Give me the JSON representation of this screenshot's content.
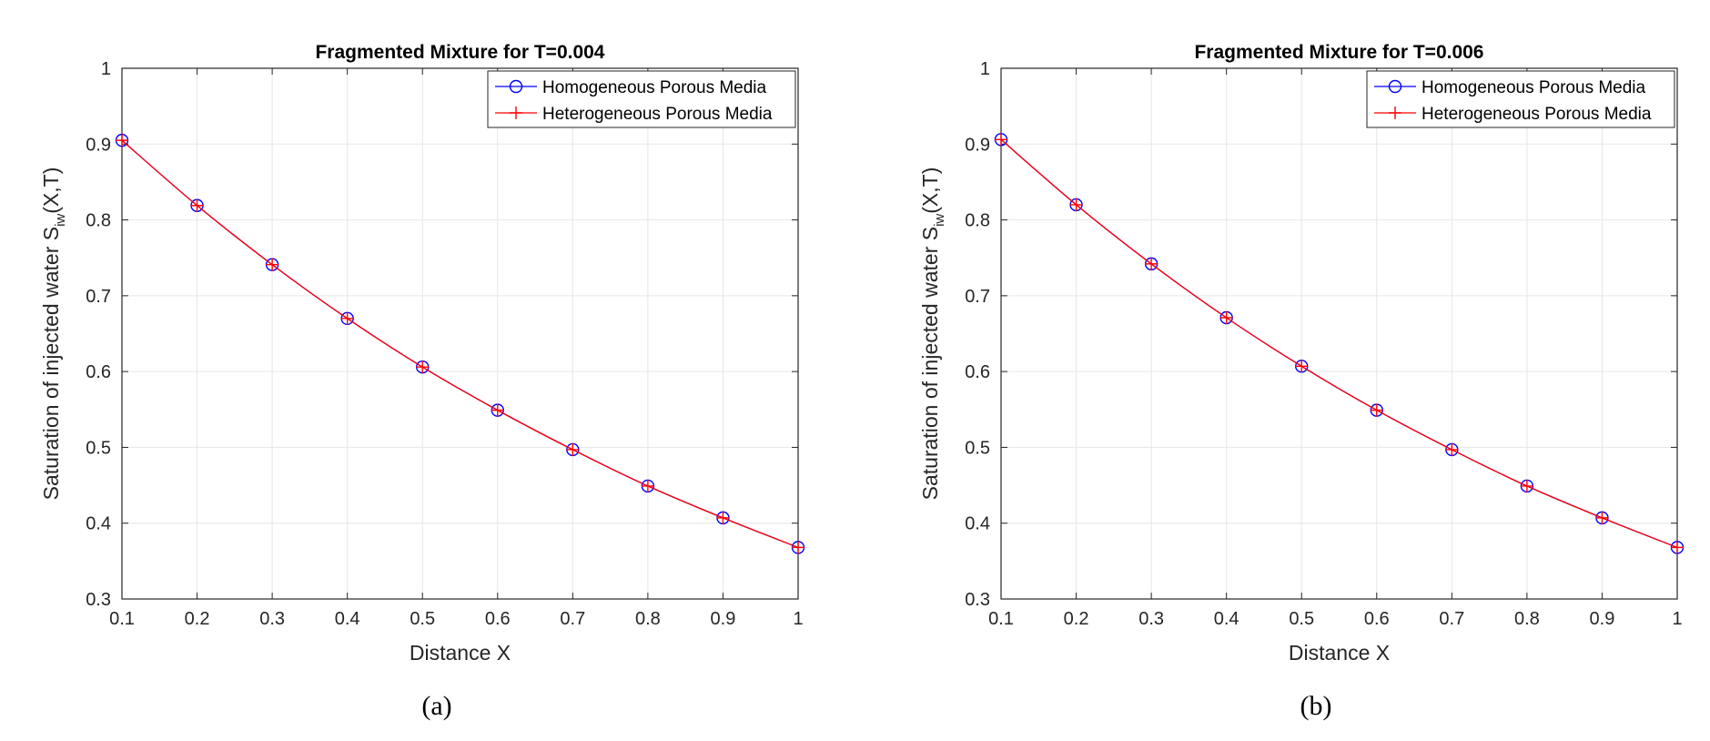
{
  "chart_data": [
    {
      "type": "line",
      "title": "Fragmented Mixture for T=0.004",
      "xlabel": "Distance X",
      "ylabel_main": "Saturation of injected water S",
      "ylabel_sub": "iw",
      "ylabel_tail": "(X,T)",
      "caption": "(a)",
      "xlim": [
        0.1,
        1
      ],
      "ylim": [
        0.3,
        1
      ],
      "xticks": [
        0.1,
        0.2,
        0.3,
        0.4,
        0.5,
        0.6,
        0.7,
        0.8,
        0.9,
        1
      ],
      "xtick_labels": [
        "0.1",
        "0.2",
        "0.3",
        "0.4",
        "0.5",
        "0.6",
        "0.7",
        "0.8",
        "0.9",
        "1"
      ],
      "yticks": [
        0.3,
        0.4,
        0.5,
        0.6,
        0.7,
        0.8,
        0.9,
        1
      ],
      "ytick_labels": [
        "0.3",
        "0.4",
        "0.5",
        "0.6",
        "0.7",
        "0.8",
        "0.9",
        "1"
      ],
      "grid": true,
      "legend_position": "top-right",
      "x": [
        0.1,
        0.2,
        0.3,
        0.4,
        0.5,
        0.6,
        0.7,
        0.8,
        0.9,
        1.0
      ],
      "series": [
        {
          "name": "Homogeneous Porous Media",
          "color": "#0000ff",
          "marker": "circle",
          "values": [
            0.905,
            0.819,
            0.741,
            0.67,
            0.606,
            0.549,
            0.497,
            0.449,
            0.407,
            0.368
          ]
        },
        {
          "name": "Heterogeneous Porous Media",
          "color": "#ff0000",
          "marker": "plus",
          "values": [
            0.905,
            0.819,
            0.741,
            0.67,
            0.606,
            0.549,
            0.497,
            0.449,
            0.407,
            0.368
          ]
        }
      ]
    },
    {
      "type": "line",
      "title": "Fragmented Mixture for T=0.006",
      "xlabel": "Distance X",
      "ylabel_main": "Saturation of injected water S",
      "ylabel_sub": "iw",
      "ylabel_tail": "(X,T)",
      "caption": "(b)",
      "xlim": [
        0.1,
        1
      ],
      "ylim": [
        0.3,
        1
      ],
      "xticks": [
        0.1,
        0.2,
        0.3,
        0.4,
        0.5,
        0.6,
        0.7,
        0.8,
        0.9,
        1
      ],
      "xtick_labels": [
        "0.1",
        "0.2",
        "0.3",
        "0.4",
        "0.5",
        "0.6",
        "0.7",
        "0.8",
        "0.9",
        "1"
      ],
      "yticks": [
        0.3,
        0.4,
        0.5,
        0.6,
        0.7,
        0.8,
        0.9,
        1
      ],
      "ytick_labels": [
        "0.3",
        "0.4",
        "0.5",
        "0.6",
        "0.7",
        "0.8",
        "0.9",
        "1"
      ],
      "grid": true,
      "legend_position": "top-right",
      "x": [
        0.1,
        0.2,
        0.3,
        0.4,
        0.5,
        0.6,
        0.7,
        0.8,
        0.9,
        1.0
      ],
      "series": [
        {
          "name": "Homogeneous Porous Media",
          "color": "#0000ff",
          "marker": "circle",
          "values": [
            0.906,
            0.82,
            0.742,
            0.671,
            0.607,
            0.549,
            0.497,
            0.449,
            0.407,
            0.368
          ]
        },
        {
          "name": "Heterogeneous Porous Media",
          "color": "#ff0000",
          "marker": "plus",
          "values": [
            0.906,
            0.82,
            0.742,
            0.671,
            0.607,
            0.549,
            0.497,
            0.449,
            0.407,
            0.368
          ]
        }
      ]
    }
  ]
}
